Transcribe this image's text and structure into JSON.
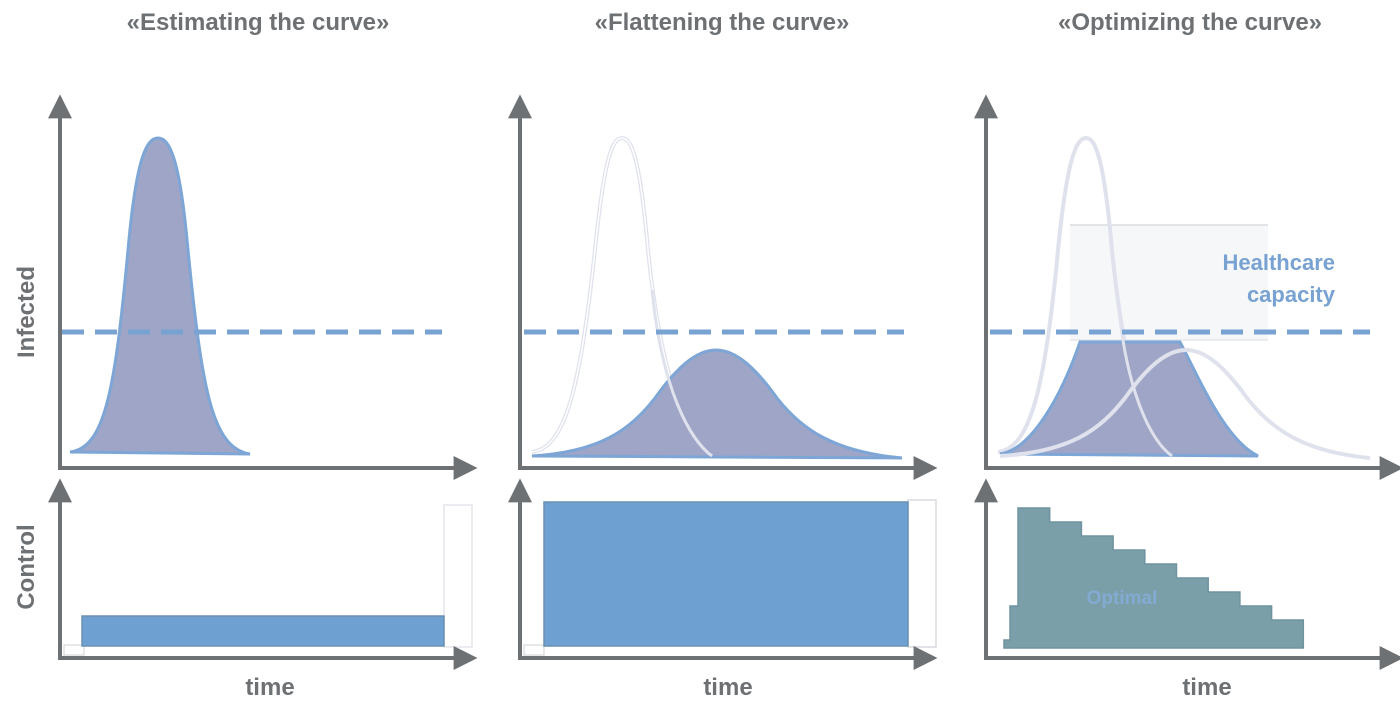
{
  "panels": [
    {
      "title": "«Estimating the curve»",
      "xlabel": "time",
      "control_label": ""
    },
    {
      "title": "«Flattening the curve»",
      "xlabel": "time",
      "control_label": ""
    },
    {
      "title": "«Optimizing the curve»",
      "xlabel": "time",
      "control_label": "Optimal"
    }
  ],
  "row_labels": {
    "top": "Infected",
    "bottom": "Control"
  },
  "healthcare_capacity": {
    "line1": "Healthcare",
    "line2": "capacity"
  },
  "colors": {
    "axis": "#6e7174",
    "infected_fill": "#9ea5c6",
    "curve_stroke": "#7da6d6",
    "capacity_line": "#78a2d2",
    "control_fill": "#6fa0d2",
    "optimal_fill": "#7a9fa8",
    "ghost_curve": "#dfe2ec"
  },
  "optimal_steps": [
    1.0,
    0.9,
    0.8,
    0.7,
    0.6,
    0.5,
    0.4,
    0.3,
    0.2
  ]
}
